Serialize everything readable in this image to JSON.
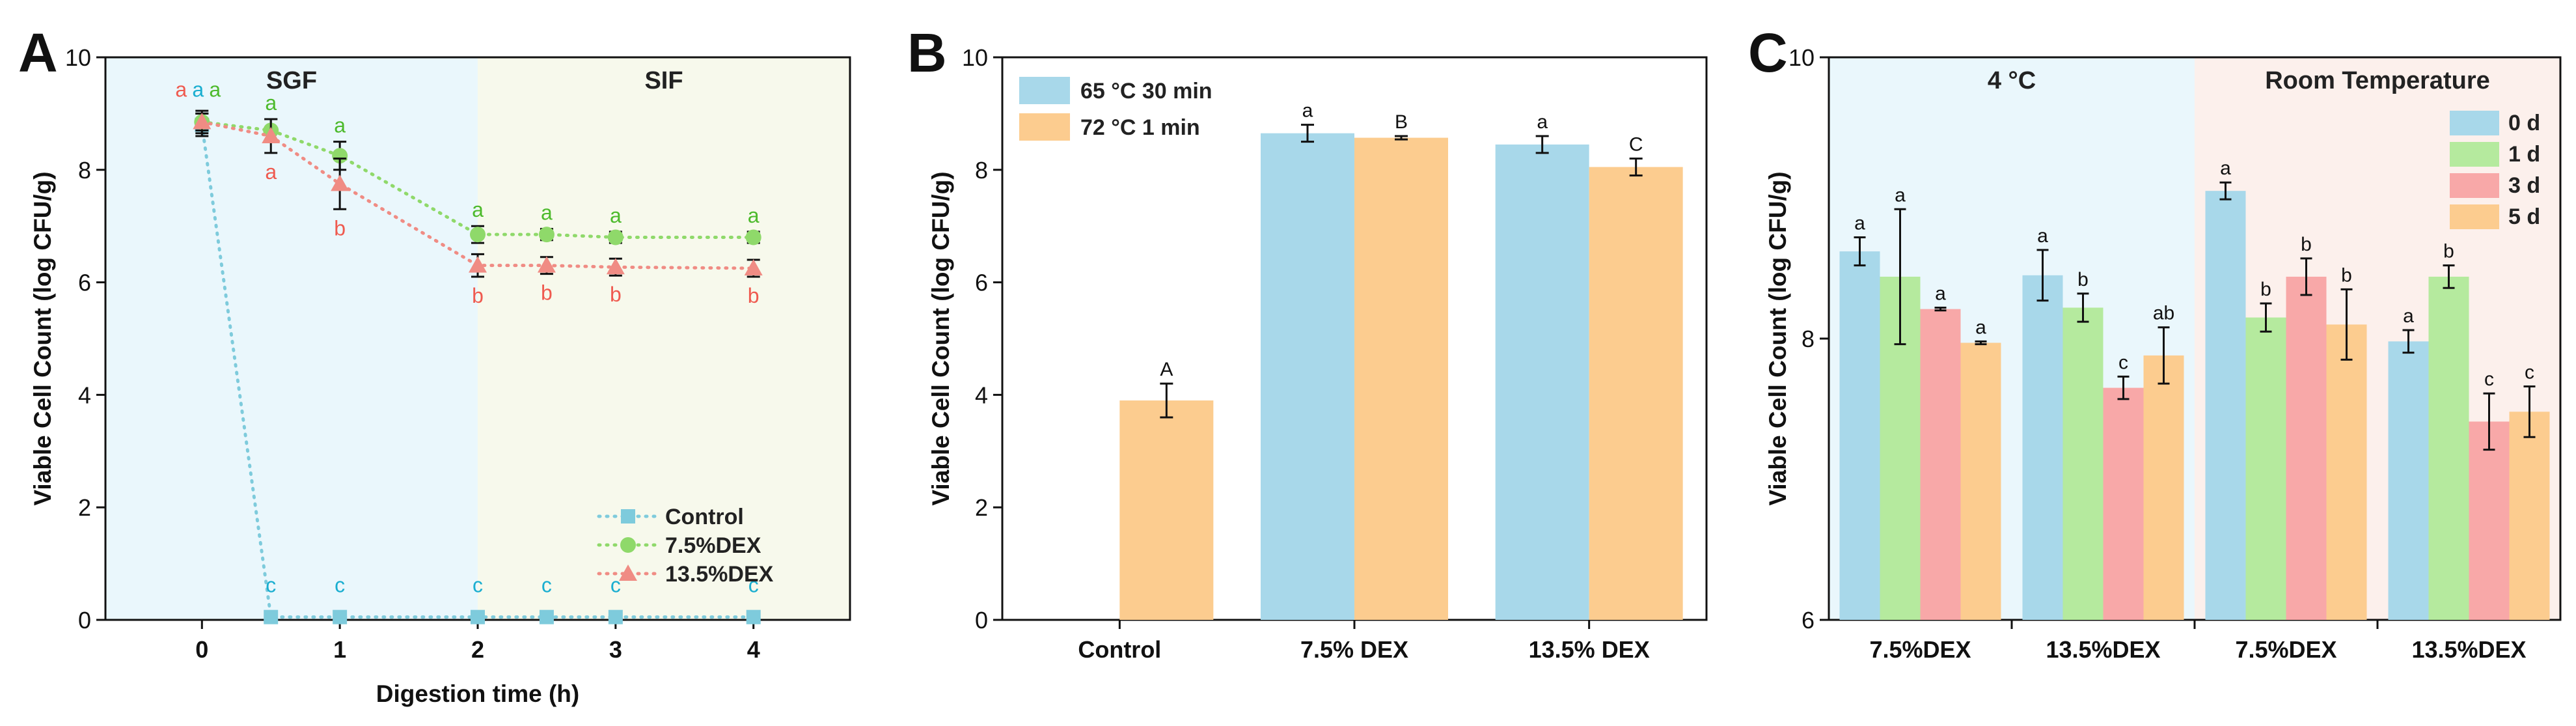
{
  "colors": {
    "sgf_bg": "#eaf7fc",
    "sif_bg": "#f7f9ec",
    "cold_bg": "#eaf7fc",
    "room_bg": "#fcf0ec",
    "control": "#7ecbdc",
    "dex75": "#8fd96a",
    "dex135": "#f08c84",
    "blue": "#a8d8ea",
    "orange": "#fccc8f",
    "green": "#b5ea9e",
    "pink": "#f8a8a8",
    "label_blue": "#1aaed0",
    "label_green": "#4dba2c",
    "label_red": "#ef5a4f"
  },
  "chart_data": [
    {
      "type": "line",
      "panel": "A",
      "xlabel": "Digestion time (h)",
      "ylabel": "Viable Cell Count (log CFU/g)",
      "xlim": [
        -0.7,
        4.7
      ],
      "ylim": [
        0,
        10
      ],
      "xticks": [
        "0",
        "1",
        "2",
        "3",
        "4"
      ],
      "yticks": [
        "0",
        "2",
        "4",
        "6",
        "8",
        "10"
      ],
      "regions": [
        {
          "label": "SGF",
          "from": -0.7,
          "to": 2
        },
        {
          "label": "SIF",
          "from": 2,
          "to": 4.7
        }
      ],
      "series": [
        {
          "name": "Control",
          "marker": "square",
          "x": [
            0,
            0.5,
            1,
            2,
            2.5,
            3,
            4
          ],
          "y": [
            8.8,
            0.05,
            0.05,
            0.05,
            0.05,
            0.05,
            0.05
          ],
          "err": [
            0.2,
            0,
            0,
            0,
            0,
            0,
            0
          ],
          "labels": [
            "a",
            "c",
            "c",
            "c",
            "c",
            "c",
            "c"
          ]
        },
        {
          "name": "7.5%DEX",
          "marker": "circle",
          "x": [
            0,
            0.5,
            1,
            2,
            2.5,
            3,
            4
          ],
          "y": [
            8.85,
            8.7,
            8.25,
            6.85,
            6.85,
            6.8,
            6.8
          ],
          "err": [
            0.15,
            0.2,
            0.25,
            0.15,
            0.1,
            0.1,
            0.1
          ],
          "labels": [
            "a",
            "a",
            "a",
            "a",
            "a",
            "a",
            "a"
          ]
        },
        {
          "name": "13.5%DEX",
          "marker": "triangle",
          "x": [
            0,
            0.5,
            1,
            2,
            2.5,
            3,
            4
          ],
          "y": [
            8.85,
            8.6,
            7.75,
            6.3,
            6.3,
            6.27,
            6.25
          ],
          "err": [
            0.2,
            0.3,
            0.45,
            0.2,
            0.15,
            0.15,
            0.15
          ],
          "labels": [
            "a",
            "a",
            "b",
            "b",
            "b",
            "b",
            "b"
          ]
        }
      ]
    },
    {
      "type": "bar",
      "panel": "B",
      "ylabel": "Viable Cell Count (log CFU/g)",
      "ylim": [
        0,
        10
      ],
      "yticks": [
        "0",
        "2",
        "4",
        "6",
        "8",
        "10"
      ],
      "categories": [
        "Control",
        "7.5% DEX",
        "13.5% DEX"
      ],
      "series": [
        {
          "name": "65 °C 30 min",
          "values": [
            null,
            8.65,
            8.45
          ],
          "err": [
            null,
            0.15,
            0.15
          ],
          "labels": [
            "",
            "a",
            "a"
          ]
        },
        {
          "name": "72 °C 1 min",
          "values": [
            3.9,
            8.57,
            8.05
          ],
          "err": [
            0.3,
            0.03,
            0.15
          ],
          "labels": [
            "A",
            "B",
            "C"
          ]
        }
      ]
    },
    {
      "type": "bar",
      "panel": "C",
      "ylabel": "Viable Cell Count (log CFU/g)",
      "ylim": [
        6,
        10
      ],
      "yticks": [
        "6",
        "8",
        "10"
      ],
      "regions": [
        {
          "label": "4 °C",
          "groups": [
            0,
            1
          ]
        },
        {
          "label": "Room Temperature",
          "groups": [
            2,
            3
          ]
        }
      ],
      "categories": [
        "7.5%DEX",
        "13.5%DEX",
        "7.5%DEX",
        "13.5%DEX"
      ],
      "series": [
        {
          "name": "0 d",
          "values": [
            8.62,
            8.45,
            9.05,
            7.98
          ],
          "err": [
            0.1,
            0.18,
            0.06,
            0.08
          ],
          "labels": [
            "a",
            "a",
            "a",
            "a"
          ]
        },
        {
          "name": "1 d",
          "values": [
            8.44,
            8.22,
            8.15,
            8.44
          ],
          "err": [
            0.48,
            0.1,
            0.1,
            0.08
          ],
          "labels": [
            "a",
            "b",
            "b",
            "b"
          ]
        },
        {
          "name": "3 d",
          "values": [
            8.21,
            7.65,
            8.44,
            7.41
          ],
          "err": [
            0.01,
            0.08,
            0.13,
            0.2
          ],
          "labels": [
            "a",
            "c",
            "b",
            "c"
          ]
        },
        {
          "name": "5 d",
          "values": [
            7.97,
            7.88,
            8.1,
            7.48
          ],
          "err": [
            0.01,
            0.2,
            0.25,
            0.18
          ],
          "labels": [
            "a",
            "ab",
            "b",
            "c"
          ]
        }
      ]
    }
  ]
}
